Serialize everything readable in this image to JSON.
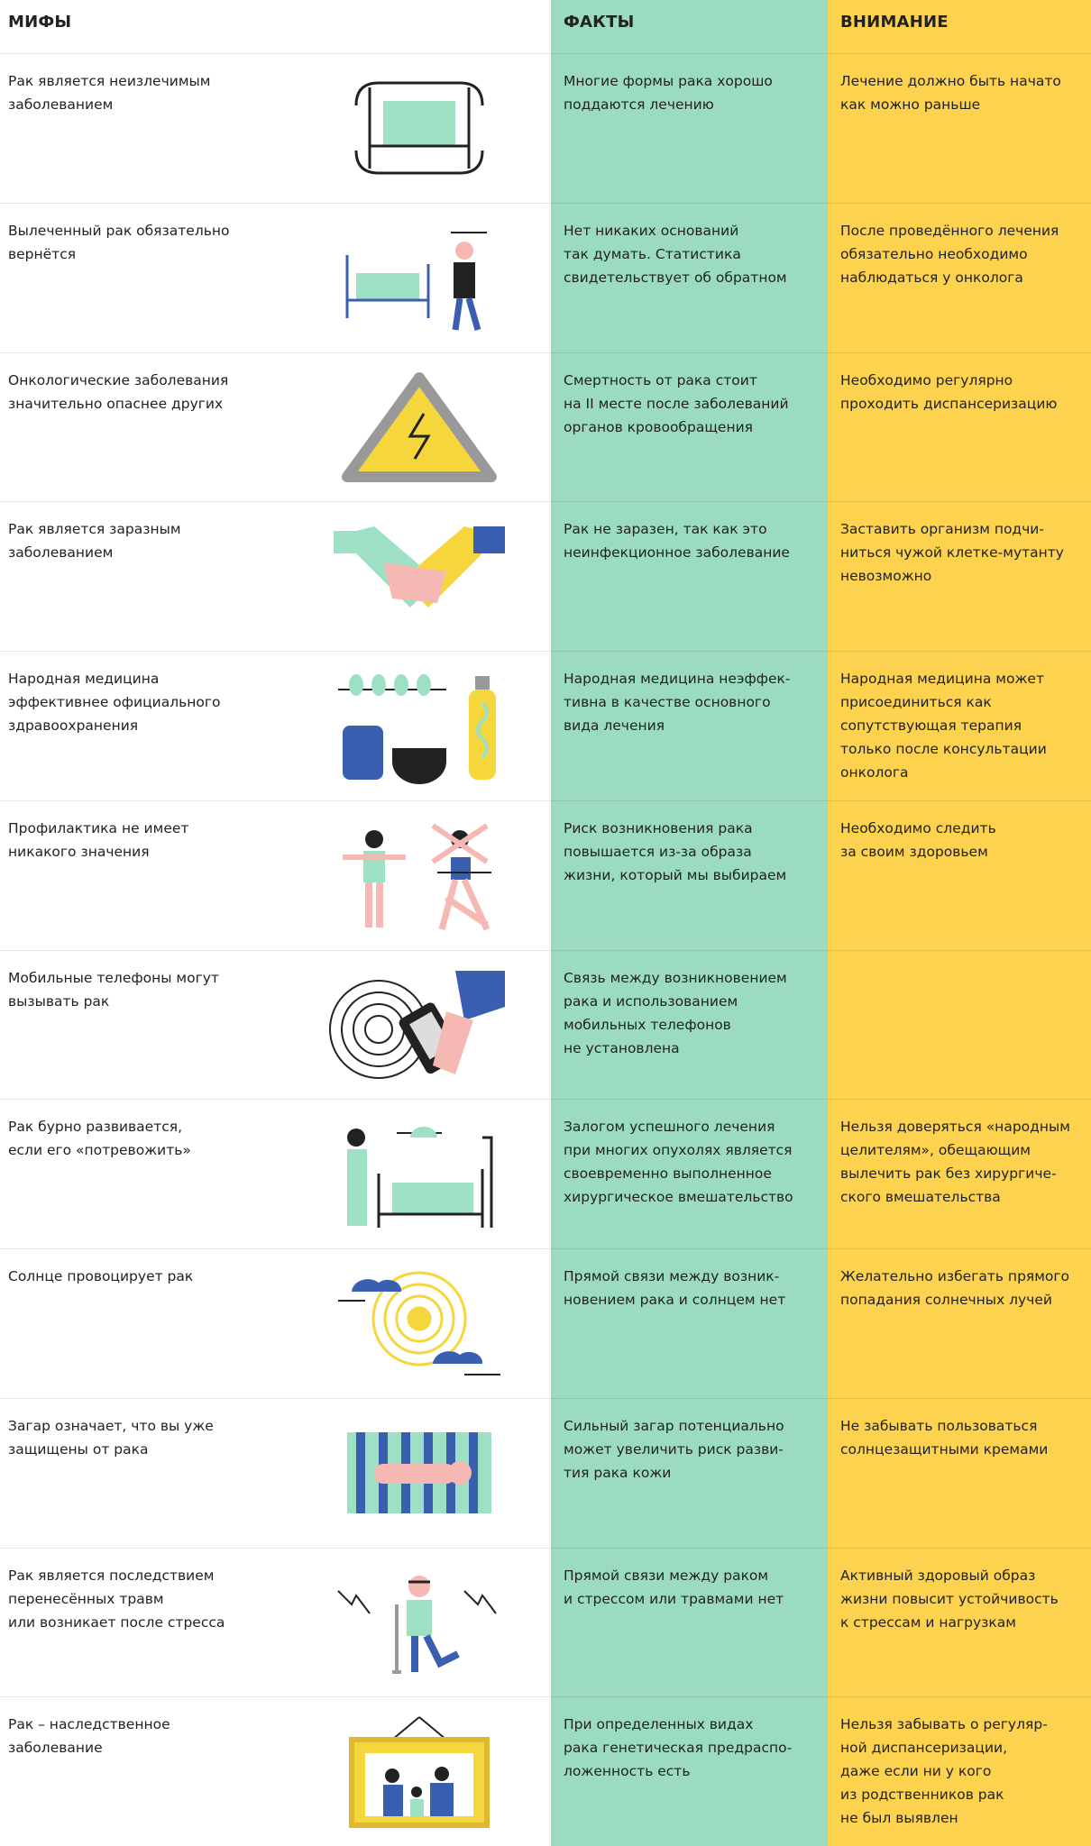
{
  "headers": {
    "myths": "МИФЫ",
    "facts": "ФАКТЫ",
    "attention": "ВНИМАНИЕ"
  },
  "rows": [
    {
      "myth": [
        "Рак является неизлечимым",
        "заболеванием"
      ],
      "fact": [
        "Многие формы рака хорошо",
        "поддаются лечению"
      ],
      "attention": [
        "Лечение должно быть начато",
        "как можно раньше"
      ]
    },
    {
      "myth": [
        "Вылеченный рак обязательно",
        "вернётся"
      ],
      "fact": [
        "Нет никаких оснований",
        "так думать. Статистика",
        "свидетельствует об обратном"
      ],
      "attention": [
        "После проведённого лечения",
        "обязательно необходимо",
        "наблюдаться у онколога"
      ]
    },
    {
      "myth": [
        "Онкологические заболевания",
        "значительно опаснее других"
      ],
      "fact": [
        "Смертность от рака стоит",
        "на II месте после заболеваний",
        "органов кровообращения"
      ],
      "attention": [
        "Необходимо регулярно",
        "проходить диспансеризацию"
      ]
    },
    {
      "myth": [
        "Рак является заразным",
        "заболеванием"
      ],
      "fact": [
        "Рак не заразен, так как это",
        "неинфекционное заболевание"
      ],
      "attention": [
        "Заставить организм подчи-",
        "ниться чужой клетке-мутанту",
        "невозможно"
      ]
    },
    {
      "myth": [
        "Народная медицина",
        "эффективнее официального",
        "здравоохранения"
      ],
      "fact": [
        "Народная медицина неэффек-",
        "тивна в качестве основного",
        "вида лечения"
      ],
      "attention": [
        "Народная медицина может",
        "присоединиться как",
        "сопутствующая терапия",
        "только после консультации",
        "онколога"
      ]
    },
    {
      "myth": [
        "Профилактика не имеет",
        "никакого значения"
      ],
      "fact": [
        "Риск возникновения рака",
        "повышается из-за образа",
        "жизни, который мы выбираем"
      ],
      "attention": [
        "Необходимо следить",
        "за своим здоровьем"
      ]
    },
    {
      "myth": [
        "Мобильные телефоны могут",
        "вызывать рак"
      ],
      "fact": [
        "Связь между возникновением",
        "рака и использованием",
        "мобильных телефонов",
        "не установлена"
      ]
    },
    {
      "myth": [
        "Рак бурно развивается,",
        "если его «потревожить»"
      ],
      "fact": [
        "Залогом успешного лечения",
        "при многих опухолях является",
        "своевременно выполненное",
        "хирургическое вмешательство"
      ],
      "attention": [
        "Нельзя доверяться «народным",
        "целителям», обещающим",
        "вылечить рак без хирургиче-",
        "ского вмешательства"
      ]
    },
    {
      "myth": [
        "Солнце провоцирует рак"
      ],
      "fact": [
        "Прямой связи между возник-",
        "новением рака и солнцем нет"
      ],
      "attention": [
        "Желательно избегать прямого",
        "попадания солнечных лучей"
      ]
    },
    {
      "myth": [
        "Загар означает, что вы уже",
        "защищены от рака"
      ],
      "fact": [
        "Сильный загар потенциально",
        "может увеличить риск разви-",
        "тия рака кожи"
      ],
      "attention": [
        "Не забывать пользоваться",
        "солнцезащитными кремами"
      ]
    },
    {
      "myth": [
        "Рак является последствием",
        "перенесённых травм",
        "или возникает после стресса"
      ],
      "fact": [
        "Прямой связи между раком",
        "и стрессом или травмами нет"
      ],
      "attention": [
        "Активный здоровый образ",
        "жизни повысит устойчивость",
        "к стрессам и нагрузкам"
      ]
    },
    {
      "myth": [
        "Рак – наследственное",
        "заболевание"
      ],
      "fact": [
        "При определенных видах",
        "рака генетическая предраспо-",
        "ложенность есть"
      ],
      "attention": [
        "Нельзя забывать о регуляр-",
        "ной диспансеризации,",
        "даже если ни у кого",
        "из родственников рак",
        "не был выявлен"
      ]
    }
  ]
}
